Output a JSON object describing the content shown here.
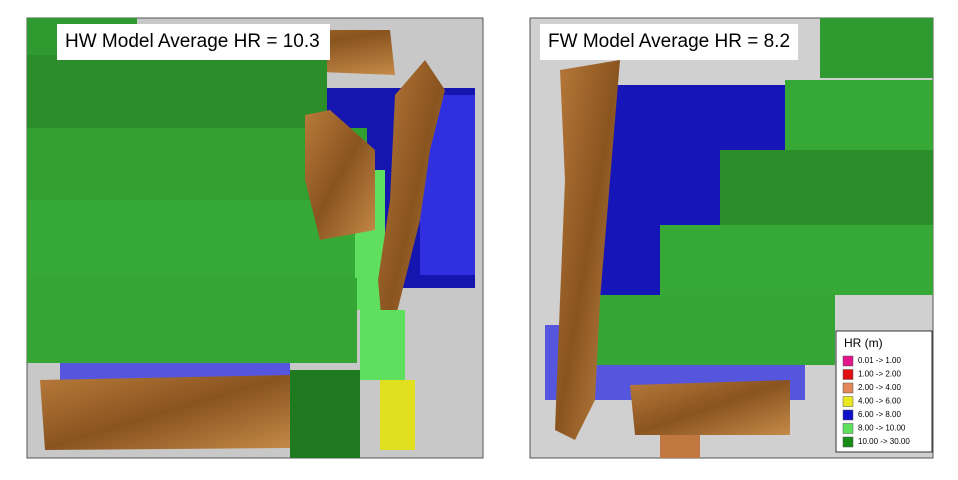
{
  "panels": [
    {
      "title": "HW Model Average HR = 10.3"
    },
    {
      "title": "FW Model Average HR = 8.2"
    }
  ],
  "legend": {
    "title": "HR (m)",
    "items": [
      {
        "label": "0.01 -> 1.00",
        "color": "#e0168a"
      },
      {
        "label": "1.00 -> 2.00",
        "color": "#e01010"
      },
      {
        "label": "2.00 -> 4.00",
        "color": "#e0885a"
      },
      {
        "label": "4.00 -> 6.00",
        "color": "#e8e820"
      },
      {
        "label": "6.00 -> 8.00",
        "color": "#1010c8"
      },
      {
        "label": "8.00 -> 10.00",
        "color": "#5ee05e"
      },
      {
        "label": "10.00 -> 30.00",
        "color": "#168c16"
      }
    ]
  }
}
